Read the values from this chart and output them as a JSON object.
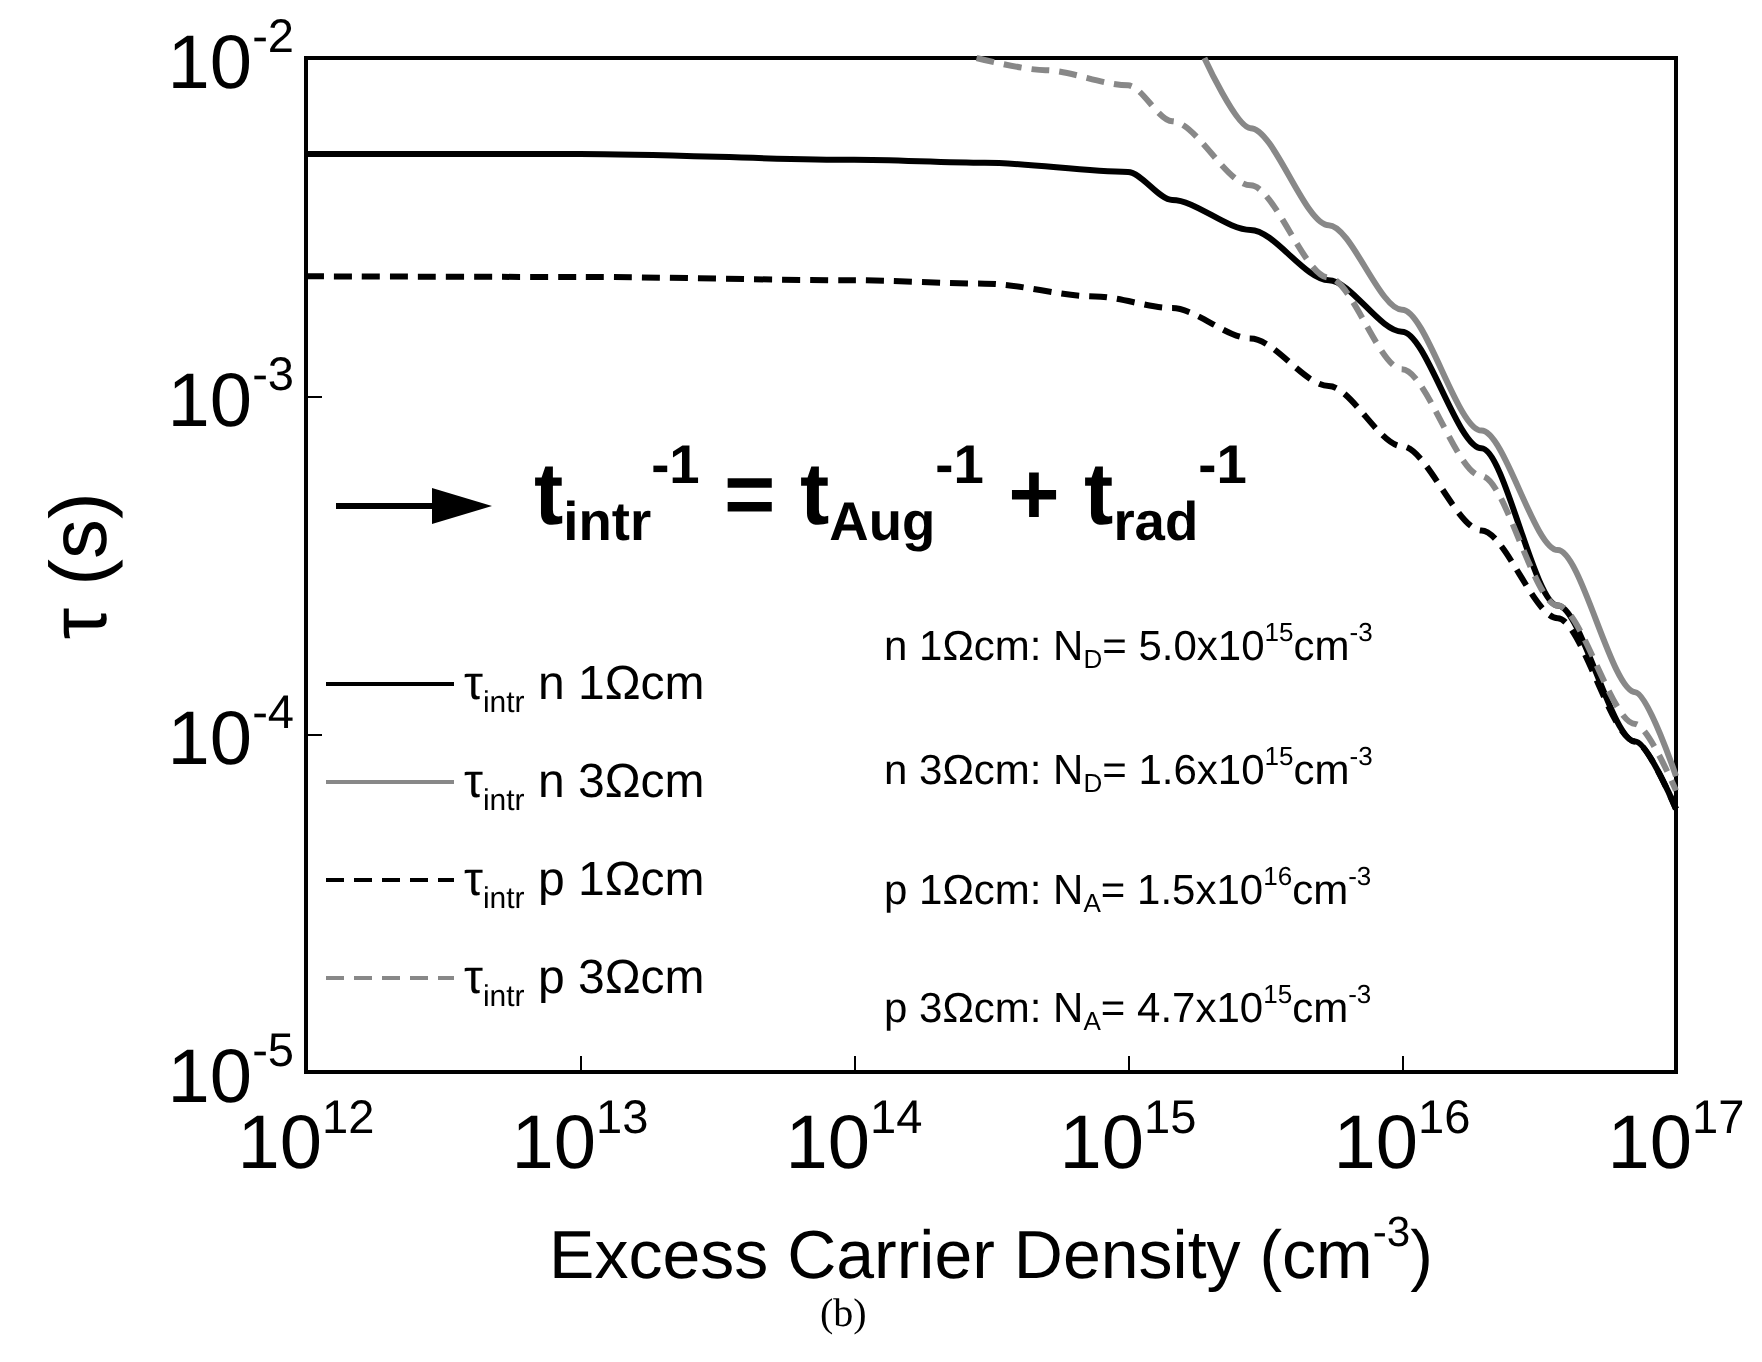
{
  "chart_data": {
    "type": "line",
    "xlabel": "Excess Carrier Density (cm$^{-3}$)",
    "ylabel": "τ (s)",
    "log": "xy",
    "grid": false,
    "legend": "bottom left",
    "marker": "none",
    "xlim": [
      1000000000000.0,
      1e+17
    ],
    "ylim": [
      1e-05,
      0.01
    ],
    "xticks": [
      {
        "value": 1000000000000.0,
        "label": "10$^{12}$"
      },
      {
        "value": 10000000000000.0,
        "label": "10$^{13}$"
      },
      {
        "value": 100000000000000.0,
        "label": "10$^{14}$"
      },
      {
        "value": 1000000000000000.0,
        "label": "10$^{15}$"
      },
      {
        "value": 1e+16,
        "label": "10$^{16}$"
      },
      {
        "value": 1e+17,
        "label": "10$^{17}$"
      }
    ],
    "yticks": [
      {
        "value": 1e-05,
        "label": "10$^{-5}$"
      },
      {
        "value": 0.0001,
        "label": "10$^{-4}$"
      },
      {
        "value": 0.001,
        "label": "10$^{-3}$"
      },
      {
        "value": 0.01,
        "label": "10$^{-2}$"
      }
    ],
    "series": [
      {
        "name": "τ$_{intr}$ n 1Ωcm",
        "color": "#000000",
        "line_style": "solid",
        "x": [
          1000000000000.0,
          10000000000000.0,
          100000000000000.0,
          300000000000000.0,
          1000000000000000.0,
          1450000000000000.0,
          2800000000000000.0,
          5400000000000000.0,
          1e+16,
          1.95e+16,
          3.7e+16,
          7.1e+16,
          1e+17
        ],
        "values": [
          0.0052,
          0.0052,
          0.005,
          0.0049,
          0.0046,
          0.0038,
          0.0031,
          0.0022,
          0.00155,
          0.0007,
          0.00024,
          9.5e-05,
          6e-05
        ]
      },
      {
        "name": "τ$_{intr}$ n 3Ωcm",
        "color": "#888888",
        "line_style": "solid",
        "x": [
          1900000000000000.0,
          2800000000000000.0,
          5400000000000000.0,
          1e+16,
          1.95e+16,
          3.7e+16,
          7.1e+16,
          1e+17
        ],
        "values": [
          0.01,
          0.0062,
          0.0032,
          0.0018,
          0.00079,
          0.00035,
          0.000133,
          7.5e-05
        ]
      },
      {
        "name": "τ$_{intr}$ p 1Ωcm",
        "color": "#000000",
        "line_style": "dashed",
        "x": [
          1000000000000.0,
          10000000000000.0,
          100000000000000.0,
          300000000000000.0,
          760000000000000.0,
          1450000000000000.0,
          2800000000000000.0,
          5400000000000000.0,
          1e+16,
          1.95e+16,
          3.7e+16,
          7.1e+16,
          1e+17
        ],
        "values": [
          0.00226,
          0.00225,
          0.0022,
          0.00215,
          0.00197,
          0.00182,
          0.00148,
          0.00107,
          0.00071,
          0.0004,
          0.00022,
          9.5e-05,
          6e-05
        ]
      },
      {
        "name": "τ$_{intr}$ p 3Ωcm",
        "color": "#888888",
        "line_style": "dashed",
        "x": [
          280000000000000.0,
          500000000000000.0,
          1000000000000000.0,
          1450000000000000.0,
          2800000000000000.0,
          5400000000000000.0,
          1e+16,
          1.95e+16,
          3.7e+16,
          7.1e+16,
          1e+17
        ],
        "values": [
          0.01,
          0.0092,
          0.0083,
          0.0065,
          0.0042,
          0.00224,
          0.0012,
          0.00058,
          0.00024,
          0.000107,
          6.8e-05
        ]
      }
    ],
    "annotations": [
      "t$_{intr}$$^{-1}$ = t$_{Aug}$$^{-1}$ + t$_{rad}$$^{-1}$",
      "n 1Ωcm: N$_{D}$= 5.0x10$^{15}$cm$^{-3}$",
      "n 3Ωcm: N$_{D}$= 1.6x10$^{15}$cm$^{-3}$",
      "p 1Ωcm: N$_{A}$= 1.5x10$^{16}$cm$^{-3}$",
      "p 3Ωcm: N$_{A}$= 4.7x10$^{15}$cm$^{-3}$",
      "(b)"
    ]
  }
}
